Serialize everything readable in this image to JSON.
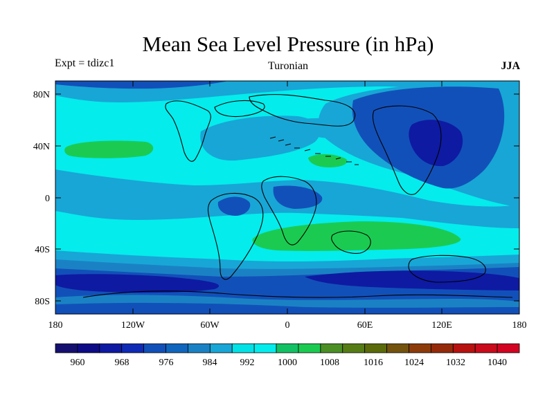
{
  "title": "Mean Sea Level Pressure (in hPa)",
  "experiment": "Expt = tdizc1",
  "period": "Turonian",
  "season": "JJA",
  "axes": {
    "y_labels": [
      "80N",
      "40N",
      "0",
      "40S",
      "80S"
    ],
    "x_labels": [
      "180",
      "120W",
      "60W",
      "0",
      "60E",
      "120E",
      "180"
    ]
  },
  "colorbar": {
    "labels": [
      "960",
      "968",
      "976",
      "984",
      "992",
      "1000",
      "1008",
      "1016",
      "1024",
      "1032",
      "1040"
    ],
    "colors": [
      "#15106f",
      "#0d0b86",
      "#0e1aa2",
      "#0f2ab4",
      "#1250b9",
      "#1065bd",
      "#1a82c4",
      "#18a6d6",
      "#00e2e5",
      "#04ecec",
      "#12c163",
      "#1bcb51",
      "#4b8f25",
      "#567d15",
      "#5b6a0b",
      "#73530d",
      "#8e3b0a",
      "#952a0a",
      "#b7120f",
      "#c90b1b",
      "#d20421"
    ]
  },
  "palette": {
    "deep_low": "#0e1aa2",
    "low": "#1250b9",
    "mid_low": "#1a82c4",
    "mid": "#18a6d6",
    "base": "#04ecec",
    "high": "#1bcb51"
  }
}
